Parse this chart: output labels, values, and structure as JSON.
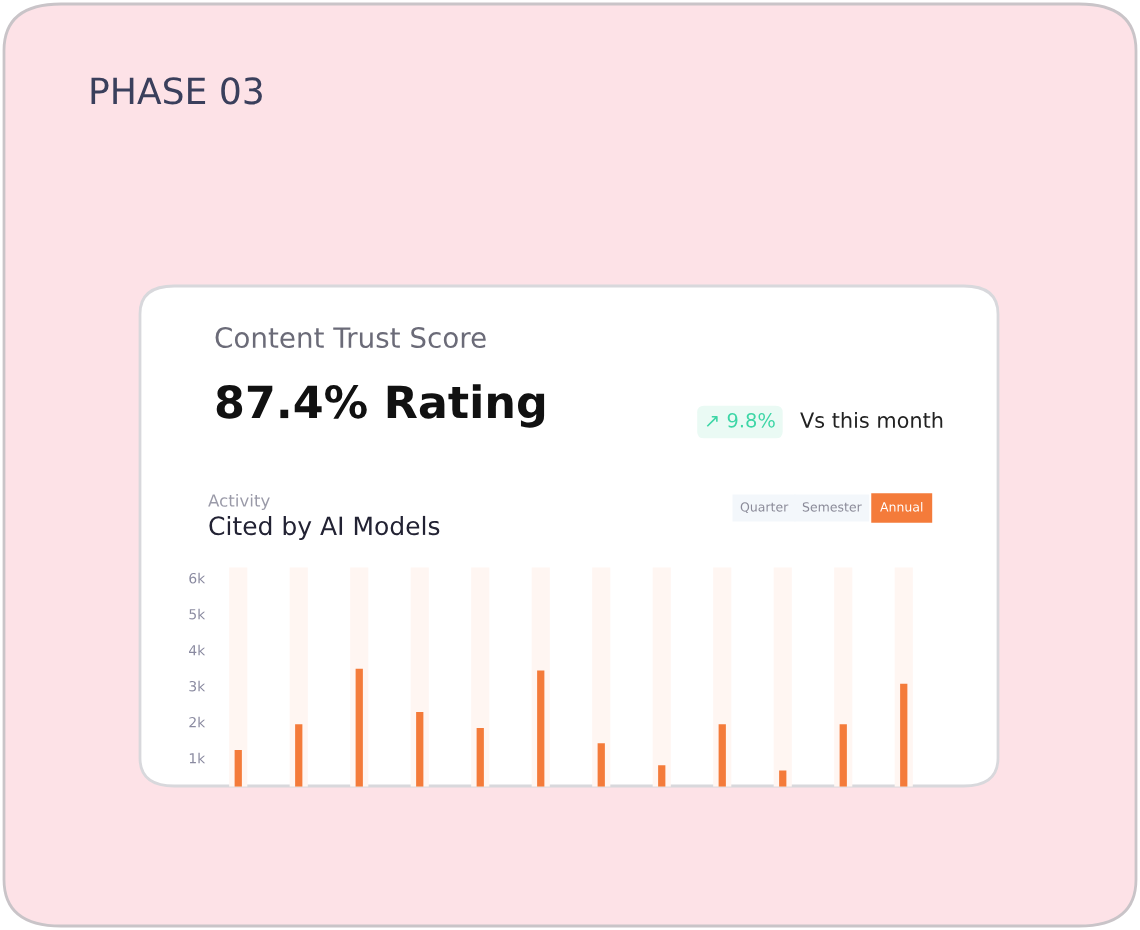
{
  "chart_data": {
    "type": "bar",
    "title": "Cited by AI Models",
    "subtitle": "Activity",
    "annotations": [
      "PHASE 03",
      "Content Trust Score",
      "87.4% Rating",
      "↗ 9.8%",
      "Vs this month",
      "Quarter",
      "Semester",
      "Annual"
    ],
    "categories": [
      null,
      null,
      null,
      null,
      null,
      null,
      null,
      null,
      null,
      null,
      null,
      null
    ],
    "values": [
      1.22,
      1.94,
      3.48,
      2.28,
      1.83,
      3.43,
      1.41,
      0.8,
      1.94,
      0.65,
      1.94,
      3.06
    ],
    "color": "#f47b3a",
    "ylim": [
      0.2,
      6.3
    ],
    "yticks": [
      {
        "value": 1,
        "label": "1k"
      },
      {
        "value": 2,
        "label": "2k"
      },
      {
        "value": 3,
        "label": "3k"
      },
      {
        "value": 4,
        "label": "4k"
      },
      {
        "value": 5,
        "label": "5k"
      },
      {
        "value": 6,
        "label": "6k"
      }
    ],
    "tick_labels": "y"
  }
}
